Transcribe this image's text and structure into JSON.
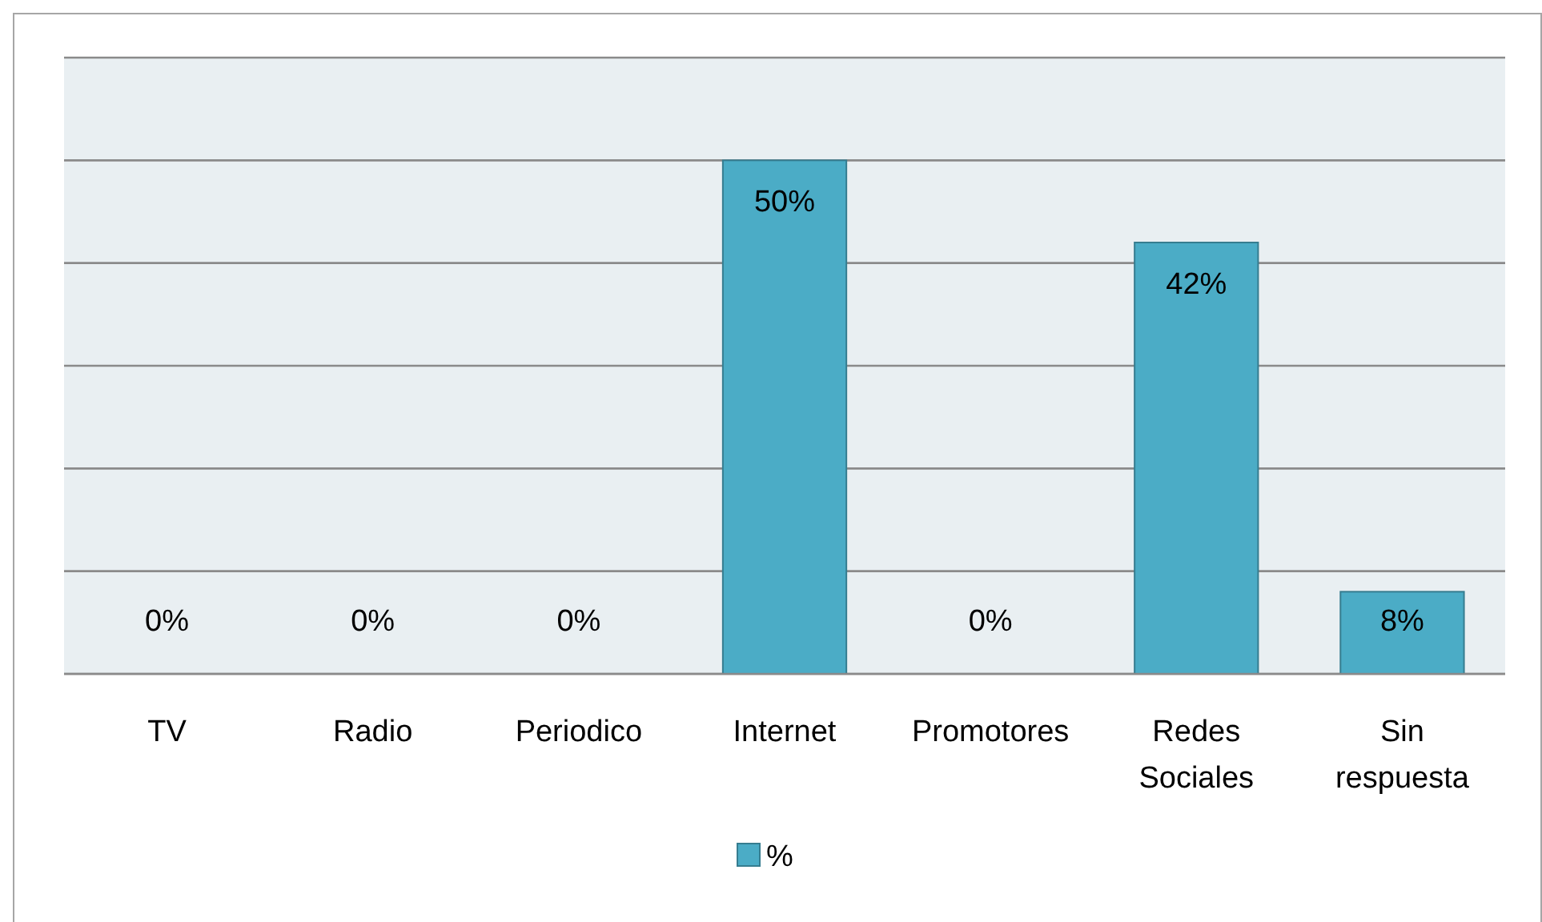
{
  "chart_data": {
    "type": "bar",
    "categories": [
      "TV",
      "Radio",
      "Periodico",
      "Internet",
      "Promotores",
      "Redes Sociales",
      "Sin respuesta"
    ],
    "series": [
      {
        "name": "%",
        "color": "#4bacc6",
        "values": [
          0,
          0,
          0,
          50,
          0,
          42,
          8
        ],
        "value_labels": [
          "0%",
          "0%",
          "0%",
          "50%",
          "0%",
          "42%",
          "8%"
        ]
      }
    ],
    "tick_labels": "x",
    "grid": "y",
    "legend": "bottom"
  }
}
